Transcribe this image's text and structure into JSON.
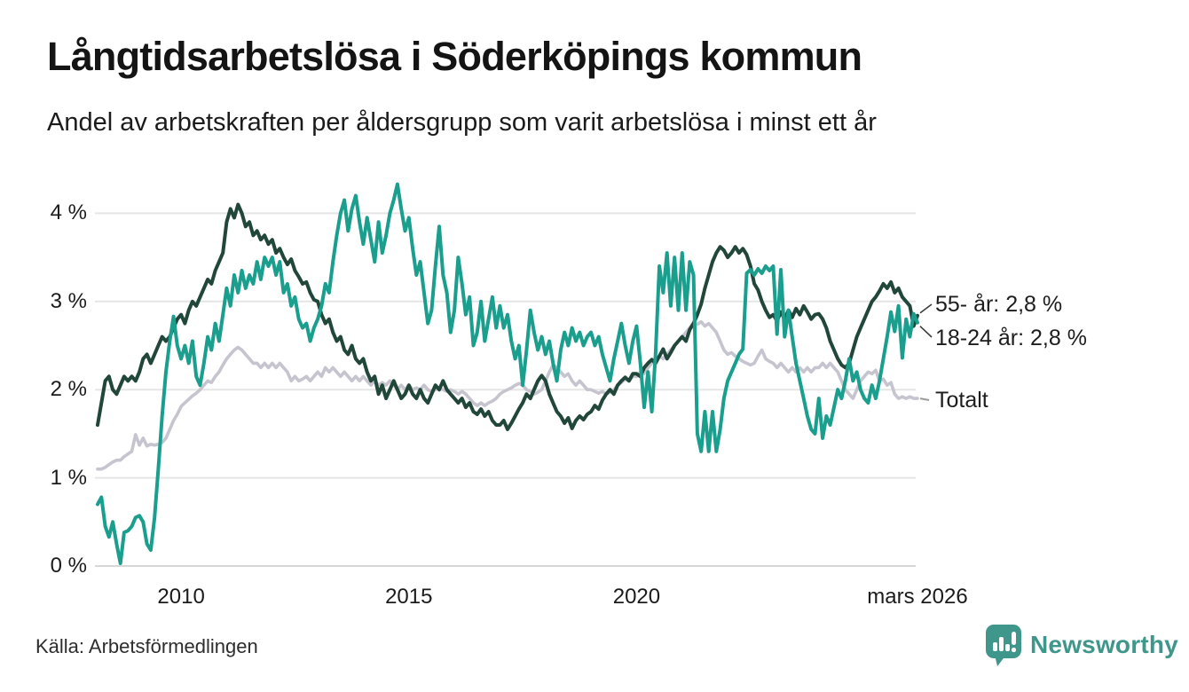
{
  "header": {
    "title": "Långtidsarbetslösa i Söderköpings kommun",
    "subtitle": "Andel av arbetskraften per åldersgrupp som varit arbetslösa i minst ett år"
  },
  "source": {
    "label": "Källa: Arbetsförmedlingen"
  },
  "branding": {
    "name": "Newsworthy",
    "logo_icon": "newsworthy-speech-bubble-bar-chart-icon",
    "color": "#3f968b"
  },
  "chart_data": {
    "type": "line",
    "title": "Långtidsarbetslösa i Söderköpings kommun",
    "subtitle": "Andel av arbetskraften per åldersgrupp som varit arbetslösa i minst ett år",
    "unit": "%",
    "frequency": "monthly",
    "x_start": "2008-03",
    "x_end": "2026-03",
    "x_domain": [
      2008.1667,
      2026.1667
    ],
    "ylim": [
      0,
      4.5
    ],
    "grid": "horizontal",
    "legend_position": "end-of-line-labels",
    "draw_order": [
      2,
      0,
      1
    ],
    "x_ticks": [
      {
        "label": "2010",
        "t": 2010
      },
      {
        "label": "2015",
        "t": 2015
      },
      {
        "label": "2020",
        "t": 2020
      },
      {
        "label": "mars 2026",
        "t": 2026.1667
      }
    ],
    "y_ticks": [
      {
        "label": "0 %",
        "value": 0
      },
      {
        "label": "1 %",
        "value": 1
      },
      {
        "label": "2 %",
        "value": 2
      },
      {
        "label": "3 %",
        "value": 3
      },
      {
        "label": "4 %",
        "value": 4
      }
    ],
    "series": [
      {
        "id": "55-ar",
        "name": "55- år",
        "end_label": "55- år: 2,8 %",
        "latest_value": "2,8 %",
        "color": "#21463a",
        "line_width": 4,
        "values": [
          1.6,
          1.85,
          2.1,
          2.15,
          2.0,
          1.95,
          2.05,
          2.15,
          2.1,
          2.15,
          2.1,
          2.2,
          2.35,
          2.4,
          2.3,
          2.4,
          2.5,
          2.6,
          2.55,
          2.6,
          2.7,
          2.8,
          2.85,
          2.75,
          2.9,
          3.0,
          2.95,
          3.05,
          3.15,
          3.25,
          3.2,
          3.35,
          3.45,
          3.55,
          3.9,
          4.05,
          3.95,
          4.1,
          4.0,
          3.85,
          3.9,
          3.75,
          3.8,
          3.7,
          3.75,
          3.65,
          3.7,
          3.55,
          3.6,
          3.5,
          3.42,
          3.48,
          3.35,
          3.28,
          3.2,
          3.22,
          3.1,
          3.02,
          3.0,
          2.85,
          2.75,
          2.8,
          2.65,
          2.55,
          2.6,
          2.45,
          2.4,
          2.5,
          2.35,
          2.3,
          2.35,
          2.2,
          2.1,
          2.15,
          1.95,
          2.05,
          1.9,
          2.0,
          2.1,
          2.0,
          1.9,
          1.95,
          2.05,
          1.95,
          1.9,
          2.0,
          1.9,
          1.85,
          1.95,
          2.05,
          2.0,
          2.1,
          2.0,
          1.95,
          1.9,
          1.85,
          1.9,
          1.8,
          1.85,
          1.75,
          1.72,
          1.78,
          1.7,
          1.75,
          1.65,
          1.6,
          1.6,
          1.65,
          1.55,
          1.62,
          1.7,
          1.78,
          1.85,
          1.95,
          1.9,
          2.0,
          2.1,
          2.16,
          2.1,
          1.95,
          1.85,
          1.75,
          1.7,
          1.62,
          1.68,
          1.56,
          1.65,
          1.7,
          1.66,
          1.72,
          1.75,
          1.82,
          1.78,
          1.88,
          1.95,
          2.0,
          1.95,
          2.05,
          2.1,
          2.14,
          2.1,
          2.18,
          2.18,
          2.15,
          2.25,
          2.3,
          2.34,
          2.3,
          2.38,
          2.46,
          2.35,
          2.42,
          2.5,
          2.55,
          2.6,
          2.55,
          2.68,
          2.75,
          2.85,
          2.97,
          3.15,
          3.3,
          3.45,
          3.55,
          3.62,
          3.58,
          3.5,
          3.55,
          3.62,
          3.55,
          3.6,
          3.53,
          3.4,
          3.2,
          3.13,
          3.0,
          2.9,
          2.82,
          2.85,
          2.78,
          2.88,
          2.8,
          2.9,
          2.82,
          2.92,
          2.85,
          2.95,
          2.88,
          2.8,
          2.85,
          2.86,
          2.8,
          2.7,
          2.55,
          2.45,
          2.35,
          2.28,
          2.25,
          2.3,
          2.45,
          2.6,
          2.7,
          2.8,
          2.9,
          3.0,
          3.05,
          3.12,
          3.2,
          3.15,
          3.22,
          3.1,
          3.15,
          3.05,
          3.0,
          2.95,
          2.72,
          2.84
        ]
      },
      {
        "id": "18-24-ar",
        "name": "18-24 år",
        "end_label": "18-24 år: 2,8 %",
        "latest_value": "2,8 %",
        "color": "#1a9e8e",
        "line_width": 4,
        "values": [
          0.7,
          0.78,
          0.45,
          0.33,
          0.5,
          0.25,
          0.03,
          0.38,
          0.4,
          0.45,
          0.55,
          0.57,
          0.5,
          0.25,
          0.18,
          0.55,
          1.1,
          1.7,
          2.2,
          2.55,
          2.83,
          2.5,
          2.35,
          2.5,
          2.3,
          2.55,
          2.15,
          2.05,
          2.3,
          2.6,
          2.45,
          2.75,
          2.55,
          2.85,
          3.15,
          2.95,
          3.3,
          3.1,
          3.35,
          3.15,
          3.3,
          3.2,
          3.45,
          3.25,
          3.5,
          3.4,
          3.5,
          3.3,
          3.45,
          3.1,
          3.2,
          2.95,
          3.05,
          2.8,
          2.7,
          2.75,
          2.55,
          2.7,
          2.8,
          2.95,
          3.2,
          3.1,
          3.45,
          3.75,
          4.0,
          4.15,
          3.8,
          4.05,
          4.2,
          3.9,
          3.65,
          3.95,
          3.7,
          3.45,
          3.9,
          3.55,
          3.75,
          4.0,
          4.15,
          4.33,
          4.05,
          3.8,
          3.95,
          3.6,
          3.3,
          3.45,
          3.1,
          2.75,
          2.9,
          3.4,
          3.85,
          3.3,
          3.1,
          2.65,
          2.9,
          3.5,
          3.2,
          2.85,
          3.05,
          2.5,
          2.65,
          3.0,
          2.55,
          2.8,
          3.05,
          2.7,
          2.95,
          2.7,
          2.85,
          2.55,
          2.35,
          2.5,
          2.05,
          2.45,
          2.9,
          2.65,
          2.45,
          2.6,
          2.4,
          2.55,
          2.3,
          2.1,
          2.45,
          2.65,
          2.5,
          2.7,
          2.55,
          2.65,
          2.5,
          2.6,
          2.65,
          2.5,
          2.6,
          2.4,
          2.25,
          2.1,
          2.35,
          2.55,
          2.75,
          2.5,
          2.3,
          2.55,
          2.72,
          2.3,
          1.8,
          2.2,
          1.75,
          2.4,
          3.4,
          3.1,
          3.55,
          2.95,
          3.5,
          2.9,
          3.55,
          2.9,
          3.45,
          3.3,
          1.5,
          1.3,
          1.75,
          1.3,
          1.75,
          1.3,
          1.55,
          1.9,
          2.1,
          2.2,
          2.3,
          2.4,
          2.46,
          3.32,
          3.36,
          3.3,
          3.37,
          3.32,
          3.4,
          3.35,
          3.4,
          2.63,
          3.36,
          2.6,
          2.9,
          2.6,
          2.3,
          2.1,
          1.9,
          1.7,
          1.55,
          1.5,
          1.9,
          1.45,
          1.7,
          1.6,
          1.8,
          2.0,
          1.9,
          2.1,
          2.35,
          2.1,
          2.2,
          2.0,
          1.9,
          1.85,
          2.05,
          1.9,
          2.1,
          2.35,
          2.6,
          2.88,
          2.66,
          2.95,
          2.36,
          2.8,
          2.6,
          2.86,
          2.76
        ]
      },
      {
        "id": "totalt",
        "name": "Totalt",
        "end_label": "Totalt",
        "latest_value": "1,9 %",
        "color": "#c6c4ce",
        "line_width": 3.6,
        "values": [
          1.1,
          1.1,
          1.12,
          1.15,
          1.18,
          1.2,
          1.2,
          1.24,
          1.27,
          1.3,
          1.49,
          1.37,
          1.45,
          1.36,
          1.38,
          1.37,
          1.38,
          1.4,
          1.45,
          1.55,
          1.65,
          1.72,
          1.81,
          1.85,
          1.89,
          1.93,
          1.96,
          2.0,
          2.05,
          2.1,
          2.08,
          2.15,
          2.2,
          2.28,
          2.35,
          2.4,
          2.45,
          2.48,
          2.45,
          2.4,
          2.35,
          2.3,
          2.3,
          2.25,
          2.3,
          2.25,
          2.3,
          2.25,
          2.3,
          2.25,
          2.2,
          2.1,
          2.15,
          2.1,
          2.12,
          2.15,
          2.1,
          2.15,
          2.2,
          2.15,
          2.25,
          2.2,
          2.25,
          2.2,
          2.15,
          2.2,
          2.15,
          2.1,
          2.15,
          2.1,
          2.15,
          2.1,
          2.05,
          2.1,
          2.05,
          2.08,
          2.05,
          2.1,
          2.05,
          2.0,
          2.05,
          2.0,
          2.05,
          2.0,
          2.02,
          2.0,
          2.05,
          2.0,
          1.98,
          2.0,
          2.02,
          2.0,
          1.98,
          2.0,
          1.98,
          1.95,
          1.98,
          1.95,
          1.9,
          1.85,
          1.82,
          1.85,
          1.82,
          1.85,
          1.87,
          1.9,
          1.95,
          1.98,
          2.0,
          2.02,
          2.05,
          2.07,
          2.05,
          2.0,
          1.98,
          1.95,
          1.97,
          2.0,
          2.1,
          2.2,
          2.28,
          2.25,
          2.2,
          2.15,
          2.18,
          2.1,
          2.05,
          2.1,
          2.05,
          2.0,
          2.0,
          1.98,
          1.96,
          1.98,
          1.95,
          1.97,
          2.0,
          2.05,
          2.08,
          2.12,
          2.1,
          2.15,
          2.15,
          2.2,
          2.18,
          2.25,
          2.3,
          2.35,
          2.38,
          2.35,
          2.4,
          2.45,
          2.5,
          2.55,
          2.6,
          2.65,
          2.7,
          2.76,
          2.74,
          2.77,
          2.72,
          2.75,
          2.7,
          2.65,
          2.55,
          2.45,
          2.4,
          2.42,
          2.38,
          2.35,
          2.32,
          2.3,
          2.28,
          2.3,
          2.38,
          2.45,
          2.35,
          2.32,
          2.3,
          2.25,
          2.3,
          2.25,
          2.2,
          2.25,
          2.2,
          2.25,
          2.2,
          2.25,
          2.2,
          2.25,
          2.25,
          2.3,
          2.25,
          2.3,
          2.25,
          2.2,
          2.1,
          2.0,
          1.95,
          1.9,
          2.0,
          2.1,
          2.15,
          2.2,
          2.18,
          2.22,
          2.1,
          2.12,
          2.05,
          2.08,
          1.95,
          1.9,
          1.92,
          1.9,
          1.92,
          1.9,
          1.9
        ]
      }
    ]
  }
}
